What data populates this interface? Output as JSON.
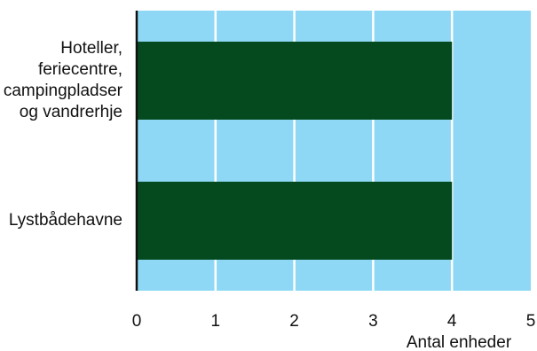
{
  "chart_data": {
    "type": "bar",
    "orientation": "horizontal",
    "categories": [
      [
        "Hoteller,",
        "feriecentre,",
        "campingpladser",
        "og vandrerhje"
      ],
      [
        "Lystbådehavne"
      ]
    ],
    "values": [
      4,
      4
    ],
    "xlim": [
      0,
      5
    ],
    "xticks": [
      "0",
      "1",
      "2",
      "3",
      "4",
      "5"
    ],
    "xlabel": "Antal enheder",
    "ylabel": "",
    "title": "",
    "grid": "vertical",
    "legend": "none",
    "colors": {
      "plot_background": "#8fd8f5",
      "bar": "#044a1e",
      "gridline": "#ffffff",
      "axis": "#111111",
      "text": "#111111"
    }
  }
}
